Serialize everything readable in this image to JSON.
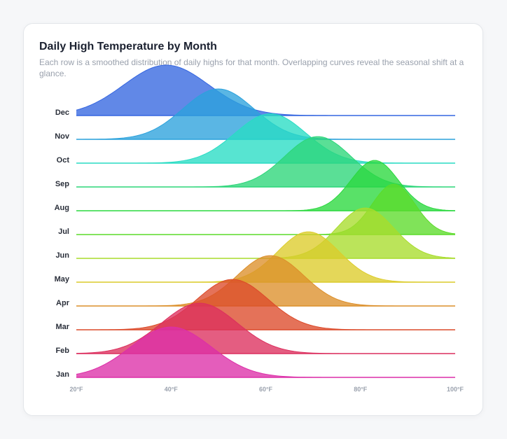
{
  "card": {
    "title": "Daily High Temperature by Month",
    "subtitle": "Each row is a smoothed distribution of daily highs for that month. Overlapping curves reveal the seasonal shift at a glance."
  },
  "chart_data": {
    "type": "area",
    "subtype": "ridgeline",
    "title": "Daily High Temperature by Month",
    "xlabel": "",
    "ylabel": "",
    "xlim": [
      20,
      100
    ],
    "x_ticks": [
      20,
      40,
      60,
      80,
      100
    ],
    "x_tick_labels": [
      "20°F",
      "40°F",
      "60°F",
      "80°F",
      "100°F"
    ],
    "grid": false,
    "legend": "none",
    "series": [
      {
        "name": "Dec",
        "color": "#3566e0",
        "peak_x": 39,
        "spread": 9.0,
        "rel_height": 1.0
      },
      {
        "name": "Nov",
        "color": "#2ba2dc",
        "peak_x": 50,
        "spread": 7.5,
        "rel_height": 1.0
      },
      {
        "name": "Oct",
        "color": "#28dcc4",
        "peak_x": 61,
        "spread": 7.5,
        "rel_height": 0.98
      },
      {
        "name": "Sep",
        "color": "#2bd679",
        "peak_x": 71,
        "spread": 7.0,
        "rel_height": 1.0
      },
      {
        "name": "Aug",
        "color": "#2ad83e",
        "peak_x": 83,
        "spread": 5.0,
        "rel_height": 1.0
      },
      {
        "name": "Jul",
        "color": "#5cdb2a",
        "peak_x": 87,
        "spread": 4.5,
        "rel_height": 1.0
      },
      {
        "name": "Jun",
        "color": "#a8dc2c",
        "peak_x": 81,
        "spread": 6.0,
        "rel_height": 1.0
      },
      {
        "name": "May",
        "color": "#dccc2a",
        "peak_x": 69,
        "spread": 6.5,
        "rel_height": 1.0
      },
      {
        "name": "Apr",
        "color": "#dc8f2a",
        "peak_x": 61,
        "spread": 7.0,
        "rel_height": 1.0
      },
      {
        "name": "Mar",
        "color": "#dc4a2a",
        "peak_x": 53,
        "spread": 7.5,
        "rel_height": 1.0
      },
      {
        "name": "Feb",
        "color": "#dc2f5e",
        "peak_x": 46,
        "spread": 8.0,
        "rel_height": 1.0
      },
      {
        "name": "Jan",
        "color": "#dc2fa8",
        "peak_x": 40,
        "spread": 8.5,
        "rel_height": 1.0
      }
    ]
  }
}
